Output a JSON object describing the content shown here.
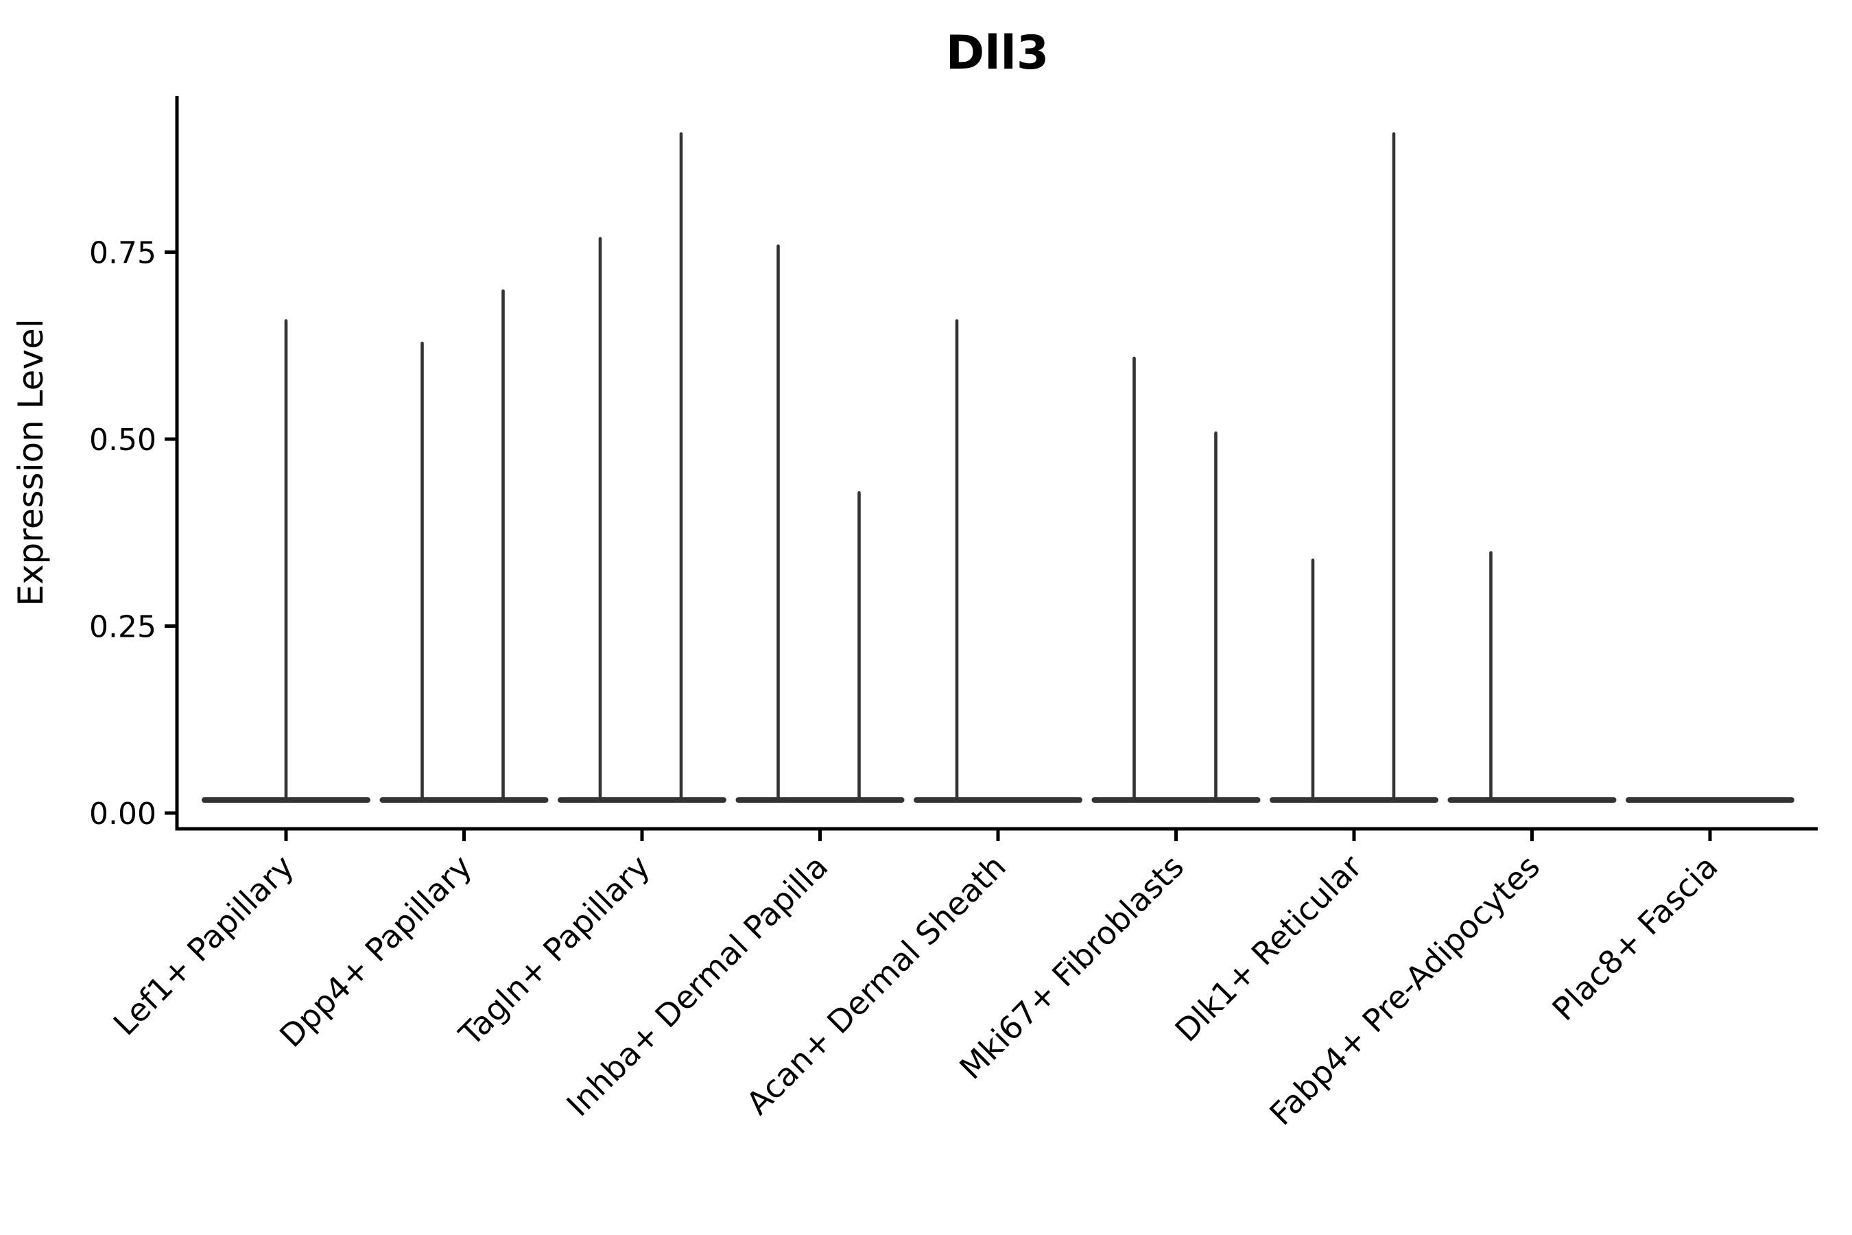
{
  "page": {
    "background": "#ffffff"
  },
  "chart_data": {
    "type": "violin",
    "title": "Dll3",
    "ylabel": "Expression Level",
    "xlabel": "",
    "grid": false,
    "legend_position": "none",
    "ylim": [
      0,
      0.96
    ],
    "ytick_labels": [
      "0.00",
      "0.25",
      "0.50",
      "0.75"
    ],
    "ytick_values": [
      0.0,
      0.25,
      0.5,
      0.75
    ],
    "categories": [
      "Lef1+ Papillary",
      "Dpp4+ Papillary",
      "Tagln+ Papillary",
      "Inhba+ Dermal Papilla",
      "Acan+ Dermal Sheath",
      "Mki67+ Fibroblasts",
      "Dlk1+ Reticular",
      "Fabp4+ Pre-Adipocytes",
      "Plac8+ Fascia"
    ],
    "series": [
      {
        "category": "Lef1+ Papillary",
        "violins": [
          {
            "align": "center",
            "dx": 0,
            "max_expression": 0.66
          }
        ]
      },
      {
        "category": "Dpp4+ Papillary",
        "violins": [
          {
            "align": "left",
            "dx": -61,
            "max_expression": 0.63
          },
          {
            "align": "right",
            "dx": 57,
            "max_expression": 0.7
          }
        ]
      },
      {
        "category": "Tagln+ Papillary",
        "violins": [
          {
            "align": "left",
            "dx": -61,
            "max_expression": 0.77
          },
          {
            "align": "right",
            "dx": 57,
            "max_expression": 0.91
          }
        ]
      },
      {
        "category": "Inhba+ Dermal Papilla",
        "violins": [
          {
            "align": "left",
            "dx": -61,
            "max_expression": 0.76
          },
          {
            "align": "right",
            "dx": 57,
            "max_expression": 0.43
          }
        ]
      },
      {
        "category": "Acan+ Dermal Sheath",
        "violins": [
          {
            "align": "left",
            "dx": -60,
            "max_expression": 0.66
          }
        ]
      },
      {
        "category": "Mki67+ Fibroblasts",
        "violins": [
          {
            "align": "left",
            "dx": -61,
            "max_expression": 0.61
          },
          {
            "align": "right",
            "dx": 58,
            "max_expression": 0.51
          }
        ]
      },
      {
        "category": "Dlk1+ Reticular",
        "violins": [
          {
            "align": "left",
            "dx": -60,
            "max_expression": 0.34
          },
          {
            "align": "right",
            "dx": 58,
            "max_expression": 0.91
          }
        ]
      },
      {
        "category": "Fabp4+ Pre-Adipocytes",
        "violins": [
          {
            "align": "left",
            "dx": -60,
            "max_expression": 0.35
          }
        ]
      },
      {
        "category": "Plac8+ Fascia",
        "violins": []
      }
    ],
    "baseline_expression": 0,
    "violin_color": "#333333",
    "axis_color": "#000000",
    "text_color": "#000000"
  }
}
